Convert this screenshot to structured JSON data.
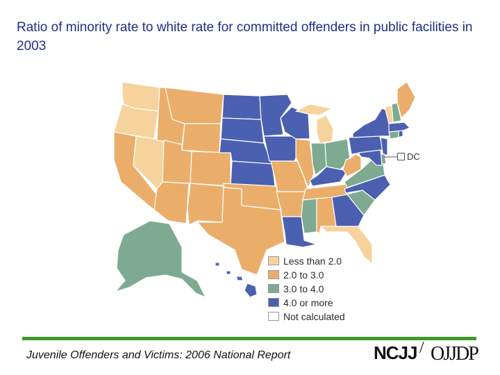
{
  "title": "Ratio of minority rate to white rate for committed offenders in public facilities in 2003",
  "colors": {
    "lt2": "#f6d39c",
    "c2to3": "#eaae6a",
    "c3to4": "#7eaa92",
    "c4plus": "#4b60b0",
    "none": "#ffffff"
  },
  "legend": [
    {
      "key": "lt2",
      "label": "Less than 2.0"
    },
    {
      "key": "c2to3",
      "label": "2.0 to 3.0"
    },
    {
      "key": "c3to4",
      "label": "3.0 to 4.0"
    },
    {
      "key": "c4plus",
      "label": "4.0 or more"
    },
    {
      "key": "none",
      "label": "Not calculated"
    }
  ],
  "dc_label": "DC",
  "states": {
    "WA": "lt2",
    "OR": "lt2",
    "CA": "c2to3",
    "NV": "lt2",
    "ID": "c2to3",
    "MT": "c2to3",
    "WY": "c2to3",
    "UT": "c2to3",
    "AZ": "c2to3",
    "CO": "c2to3",
    "NM": "c2to3",
    "TX": "c2to3",
    "ND": "c4plus",
    "SD": "c4plus",
    "NE": "c4plus",
    "KS": "c4plus",
    "OK": "c2to3",
    "MN": "c4plus",
    "IA": "c4plus",
    "MO": "c2to3",
    "AR": "c2to3",
    "LA": "c4plus",
    "WI": "c4plus",
    "IL": "c2to3",
    "MI": "lt2",
    "IN": "c3to4",
    "OH": "c3to4",
    "KY": "c4plus",
    "TN": "c2to3",
    "MS": "c3to4",
    "AL": "c2to3",
    "GA": "c4plus",
    "FL": "lt2",
    "SC": "c3to4",
    "NC": "c4plus",
    "VA": "c3to4",
    "WV": "c2to3",
    "PA": "c4plus",
    "NY": "c4plus",
    "VT": "lt2",
    "NH": "c3to4",
    "ME": "c2to3",
    "MA": "c4plus",
    "RI": "c4plus",
    "CT": "c3to4",
    "NJ": "c4plus",
    "DE": "c3to4",
    "MD": "c4plus",
    "AK": "c3to4",
    "HI": "c4plus"
  },
  "footer": {
    "report": "Juvenile Offenders and Victims: 2006 National Report",
    "logo_left": "NCJJ",
    "logo_slash": "/",
    "logo_right": "OJJDP"
  }
}
